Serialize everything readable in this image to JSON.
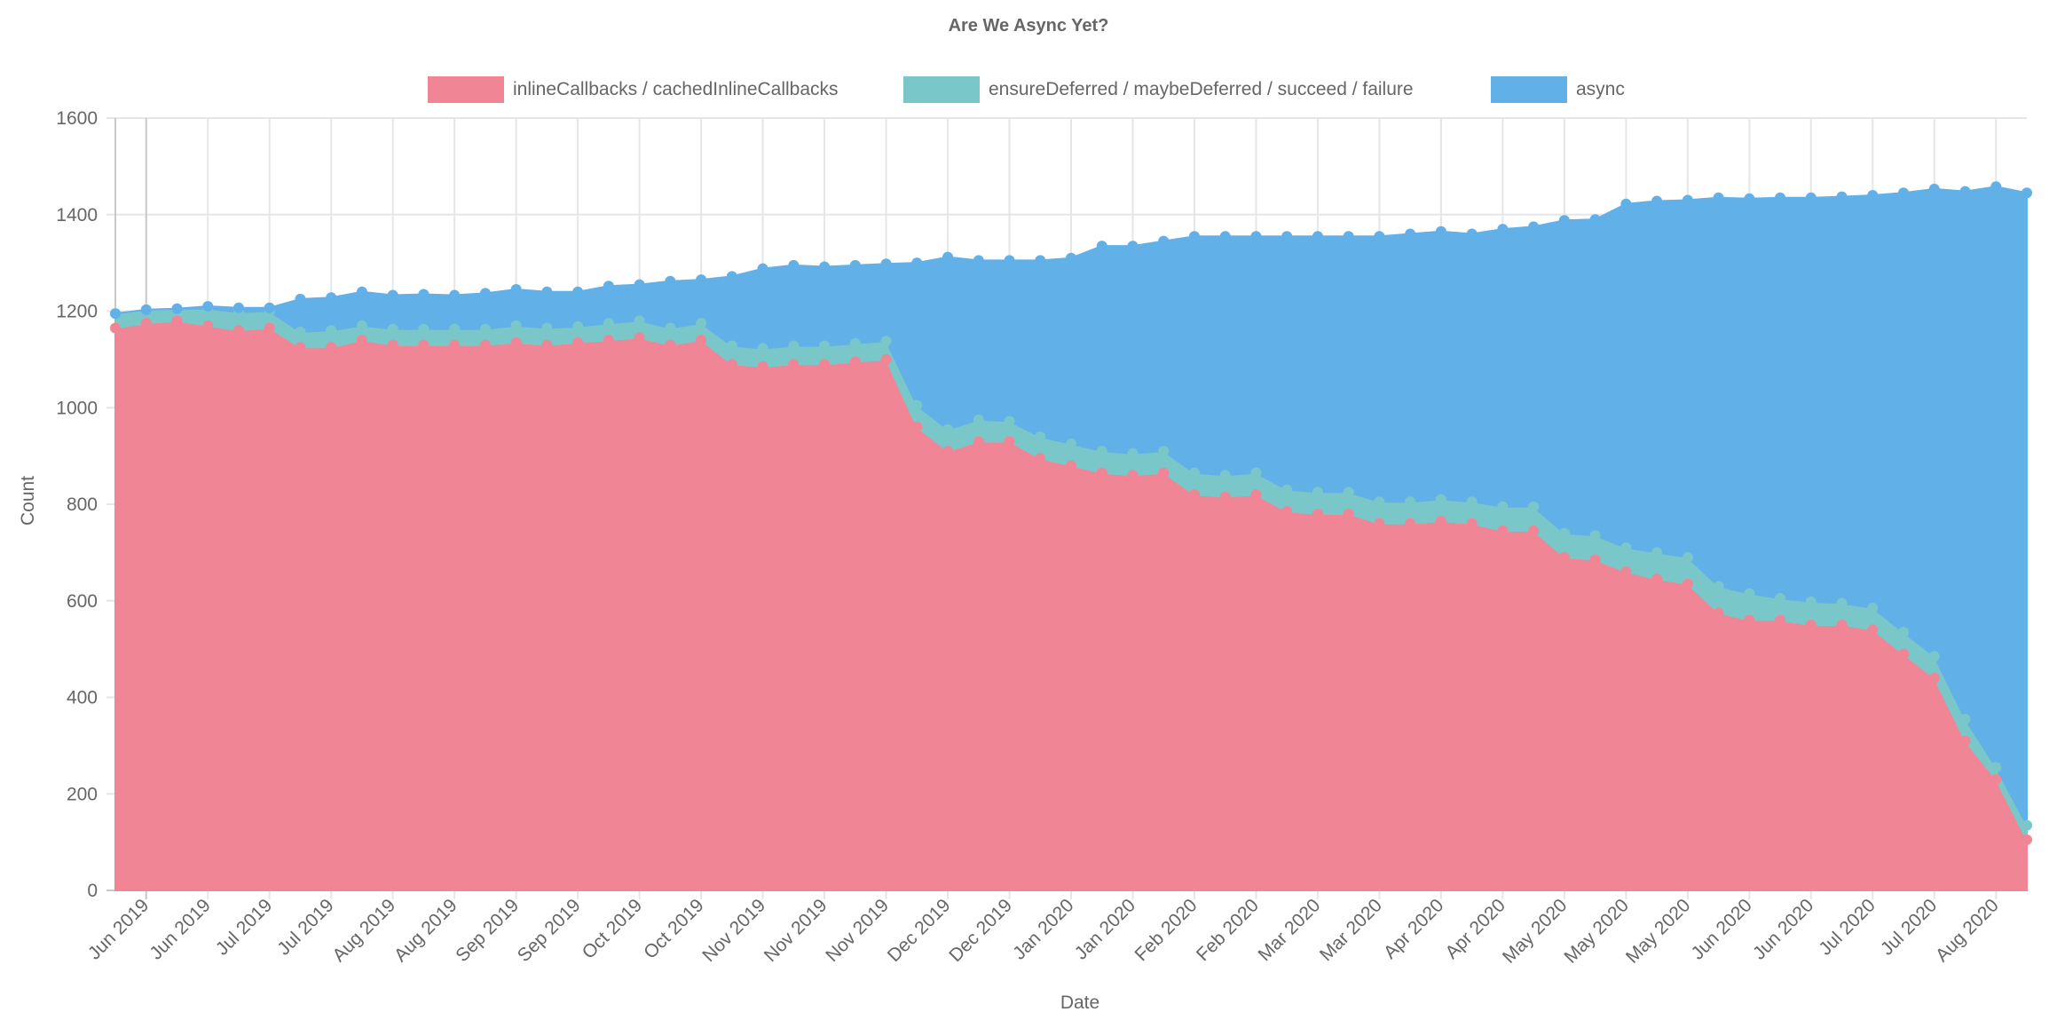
{
  "chart_data": {
    "type": "area",
    "stacked": true,
    "title": "Are We Async Yet?",
    "xlabel": "Date",
    "ylabel": "Count",
    "ylim": [
      0,
      1600
    ],
    "y_ticks": [
      0,
      200,
      400,
      600,
      800,
      1000,
      1200,
      1400,
      1600
    ],
    "grid": true,
    "legend_position": "top",
    "x_tick_labels": [
      "Jun 2019",
      "Jun 2019",
      "Jul 2019",
      "Jul 2019",
      "Aug 2019",
      "Aug 2019",
      "Sep 2019",
      "Sep 2019",
      "Oct 2019",
      "Oct 2019",
      "Nov 2019",
      "Nov 2019",
      "Nov 2019",
      "Dec 2019",
      "Dec 2019",
      "Jan 2020",
      "Jan 2020",
      "Feb 2020",
      "Feb 2020",
      "Mar 2020",
      "Mar 2020",
      "Apr 2020",
      "Apr 2020",
      "May 2020",
      "May 2020",
      "May 2020",
      "Jun 2020",
      "Jun 2020",
      "Jul 2020",
      "Jul 2020",
      "Aug 2020"
    ],
    "series": [
      {
        "name": "inlineCallbacks / cachedInlineCallbacks",
        "color": "#f08596",
        "values": [
          1165,
          1175,
          1180,
          1170,
          1160,
          1165,
          1125,
          1125,
          1140,
          1130,
          1130,
          1130,
          1130,
          1135,
          1130,
          1135,
          1140,
          1145,
          1130,
          1140,
          1090,
          1085,
          1090,
          1090,
          1095,
          1100,
          960,
          910,
          930,
          930,
          895,
          880,
          865,
          860,
          865,
          820,
          815,
          820,
          785,
          780,
          780,
          760,
          760,
          765,
          760,
          745,
          745,
          690,
          685,
          660,
          645,
          635,
          575,
          560,
          560,
          550,
          550,
          540,
          490,
          440,
          310,
          230,
          105
        ]
      },
      {
        "name": "ensureDeferred / maybeDeferred / succeed / failure",
        "color": "#7ac7c9",
        "values": [
          30,
          28,
          25,
          35,
          38,
          35,
          32,
          35,
          30,
          33,
          33,
          33,
          33,
          35,
          35,
          33,
          35,
          35,
          35,
          35,
          38,
          38,
          38,
          38,
          38,
          38,
          45,
          45,
          45,
          42,
          45,
          45,
          45,
          45,
          45,
          45,
          45,
          45,
          45,
          45,
          45,
          45,
          45,
          45,
          45,
          50,
          50,
          50,
          50,
          50,
          55,
          55,
          55,
          55,
          45,
          48,
          45,
          45,
          45,
          45,
          45,
          25,
          30
        ]
      },
      {
        "name": "async",
        "color": "#62b0e8",
        "values": [
          0,
          0,
          0,
          5,
          9,
          7,
          68,
          68,
          70,
          70,
          72,
          70,
          74,
          75,
          75,
          72,
          77,
          75,
          97,
          90,
          144,
          165,
          167,
          164,
          162,
          160,
          295,
          357,
          330,
          333,
          365,
          385,
          425,
          430,
          435,
          490,
          495,
          490,
          525,
          530,
          530,
          550,
          555,
          555,
          555,
          575,
          580,
          648,
          655,
          712,
          728,
          740,
          805,
          818,
          830,
          837,
          842,
          855,
          910,
          968,
          1093,
          1203,
          1310
        ]
      }
    ]
  }
}
